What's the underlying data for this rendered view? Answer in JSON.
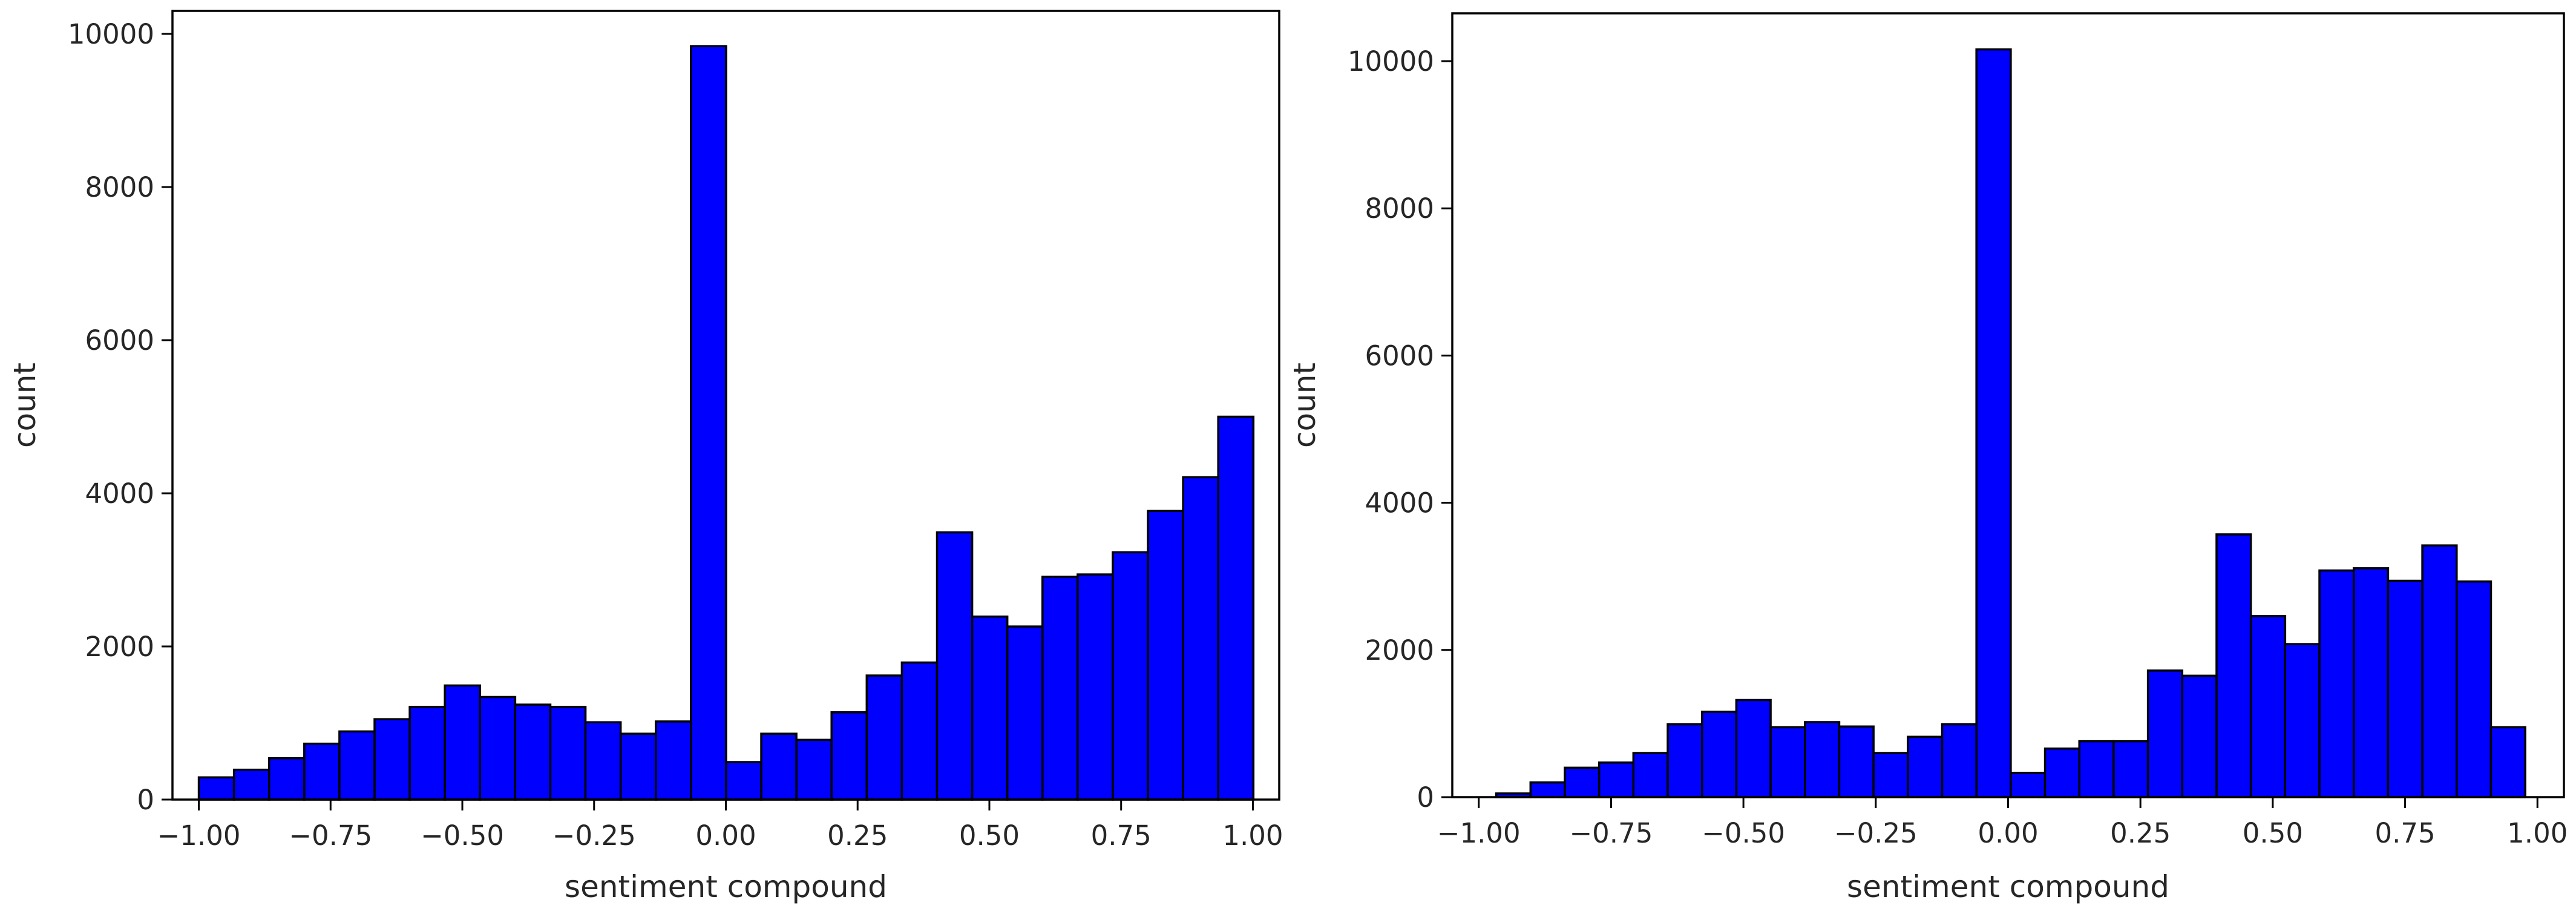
{
  "chart_data": [
    {
      "type": "bar",
      "title": "",
      "xlabel": "sentiment compound",
      "ylabel": "count",
      "xlim": [
        -1.05,
        1.05
      ],
      "ylim": [
        0,
        10300
      ],
      "xticks": [
        -1.0,
        -0.75,
        -0.5,
        -0.25,
        0.0,
        0.25,
        0.5,
        0.75,
        1.0
      ],
      "xtick_labels": [
        "−1.00",
        "−0.75",
        "−0.50",
        "−0.25",
        "0.00",
        "0.25",
        "0.50",
        "0.75",
        "1.00"
      ],
      "yticks": [
        0,
        2000,
        4000,
        6000,
        8000,
        10000
      ],
      "ytick_labels": [
        "0",
        "2000",
        "4000",
        "6000",
        "8000",
        "10000"
      ],
      "grid": false,
      "bar_color": "#0000ff",
      "edge_color": "#000000",
      "bin_start": -1.0,
      "bin_width": 0.0667,
      "values": [
        290,
        390,
        540,
        730,
        890,
        1050,
        1210,
        1490,
        1340,
        1240,
        1210,
        1010,
        860,
        1020,
        9840,
        490,
        860,
        780,
        1140,
        1620,
        1790,
        3490,
        2390,
        2260,
        2910,
        2940,
        3230,
        3770,
        4210,
        5000
      ]
    },
    {
      "type": "bar",
      "title": "",
      "xlabel": "sentiment compound",
      "ylabel": "count",
      "xlim": [
        -1.05,
        1.05
      ],
      "ylim": [
        0,
        10650
      ],
      "xticks": [
        -1.0,
        -0.75,
        -0.5,
        -0.25,
        0.0,
        0.25,
        0.5,
        0.75,
        1.0
      ],
      "xtick_labels": [
        "−1.00",
        "−0.75",
        "−0.50",
        "−0.25",
        "0.00",
        "0.25",
        "0.50",
        "0.75",
        "1.00"
      ],
      "yticks": [
        0,
        2000,
        4000,
        6000,
        8000,
        10000
      ],
      "ytick_labels": [
        "0",
        "2000",
        "4000",
        "6000",
        "8000",
        "10000"
      ],
      "grid": false,
      "bar_color": "#0000ff",
      "edge_color": "#000000",
      "bin_start": -0.967,
      "bin_width": 0.0648,
      "values": [
        50,
        200,
        400,
        470,
        600,
        990,
        1160,
        1320,
        950,
        1020,
        960,
        600,
        820,
        990,
        10160,
        330,
        660,
        760,
        760,
        1720,
        1650,
        3570,
        2460,
        2080,
        3080,
        3110,
        2940,
        3420,
        2930,
        950
      ]
    }
  ]
}
